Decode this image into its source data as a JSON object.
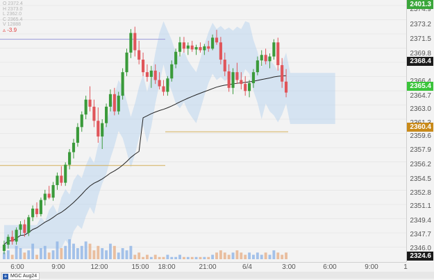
{
  "ohlc_box": {
    "lines": [
      "O 2372.4",
      "H 2373.0",
      "L 2362.0",
      "C 2365.4",
      "V 12888"
    ],
    "change": "-3.9",
    "change_icon": "triangle-delta-icon"
  },
  "price_axis": {
    "labels": [
      "2374.9",
      "2373.2",
      "2371.5",
      "2369.8",
      "2366.4",
      "2364.7",
      "2363.0",
      "2361.3",
      "2359.6",
      "2357.9",
      "2356.2",
      "2354.5",
      "2352.8",
      "2351.1",
      "2349.4",
      "2347.7",
      "2346.0"
    ],
    "badges": {
      "top": {
        "value": "2401.3",
        "color": "#3aa63a"
      },
      "last": {
        "value": "2368.4",
        "color": "#1b1b1b"
      },
      "current": {
        "value": "2365.4",
        "color": "#3bc43b"
      },
      "level": {
        "value": "2360.4",
        "color": "#c98a1a"
      },
      "bottom": {
        "value": "2324.6",
        "color": "#1b1b1b"
      }
    }
  },
  "time_axis": {
    "labels": [
      "6:00",
      "9:00",
      "12:00",
      "15:00",
      "18:00",
      "21:00",
      "6/4",
      "3:00",
      "6:00",
      "9:00",
      "1"
    ]
  },
  "symbol_tab": {
    "label": "MGC Aug24",
    "icon": "plus-icon"
  },
  "colors": {
    "bull": "#3a9a3a",
    "bear": "#e0555a",
    "cloud": "#bcd6ee",
    "cloud_red": "#f3c8cc",
    "vwap": "#222222",
    "level_line": "#d4b05a",
    "purple_line": "#9a98d8",
    "volume": "#8fb4e6",
    "volume_bear": "#e6b08a"
  },
  "chart_data": {
    "type": "candlestick",
    "ylim": [
      2344.5,
      2376.5
    ],
    "candles": [
      [
        2345.2,
        2346.5,
        2344.8,
        2346.0
      ],
      [
        2346.0,
        2347.3,
        2345.5,
        2347.0
      ],
      [
        2347.0,
        2347.8,
        2346.0,
        2346.4
      ],
      [
        2346.4,
        2348.2,
        2346.0,
        2347.9
      ],
      [
        2347.9,
        2349.0,
        2347.2,
        2348.6
      ],
      [
        2348.6,
        2349.2,
        2347.0,
        2347.5
      ],
      [
        2347.5,
        2349.8,
        2347.1,
        2349.5
      ],
      [
        2349.5,
        2351.0,
        2349.0,
        2350.6
      ],
      [
        2350.6,
        2351.4,
        2349.5,
        2349.9
      ],
      [
        2349.9,
        2352.0,
        2349.6,
        2351.7
      ],
      [
        2351.7,
        2353.0,
        2351.0,
        2352.5
      ],
      [
        2352.5,
        2353.5,
        2351.8,
        2352.0
      ],
      [
        2352.0,
        2354.0,
        2351.6,
        2353.6
      ],
      [
        2353.6,
        2355.2,
        2353.0,
        2354.8
      ],
      [
        2354.8,
        2356.0,
        2353.5,
        2353.9
      ],
      [
        2353.9,
        2356.5,
        2353.5,
        2356.2
      ],
      [
        2356.2,
        2358.2,
        2355.6,
        2357.8
      ],
      [
        2357.8,
        2359.5,
        2357.0,
        2359.0
      ],
      [
        2359.0,
        2361.5,
        2358.5,
        2361.0
      ],
      [
        2361.0,
        2363.0,
        2360.4,
        2362.6
      ],
      [
        2362.6,
        2365.0,
        2362.0,
        2364.5
      ],
      [
        2364.5,
        2366.2,
        2363.0,
        2363.6
      ],
      [
        2363.6,
        2364.5,
        2361.0,
        2361.8
      ],
      [
        2361.8,
        2363.5,
        2359.0,
        2359.8
      ],
      [
        2359.8,
        2362.0,
        2358.2,
        2361.5
      ],
      [
        2361.5,
        2364.0,
        2361.0,
        2363.6
      ],
      [
        2363.6,
        2365.8,
        2363.0,
        2365.2
      ],
      [
        2365.2,
        2366.0,
        2362.5,
        2363.0
      ],
      [
        2363.0,
        2365.5,
        2362.6,
        2365.0
      ],
      [
        2365.0,
        2368.5,
        2364.5,
        2368.0
      ],
      [
        2368.0,
        2371.0,
        2367.5,
        2370.5
      ],
      [
        2370.5,
        2373.5,
        2369.8,
        2373.0
      ],
      [
        2373.0,
        2373.8,
        2370.0,
        2370.8
      ],
      [
        2370.8,
        2372.0,
        2369.0,
        2369.6
      ],
      [
        2369.6,
        2370.5,
        2367.5,
        2368.0
      ],
      [
        2368.0,
        2369.0,
        2366.8,
        2367.4
      ],
      [
        2367.4,
        2368.8,
        2366.0,
        2368.2
      ],
      [
        2368.2,
        2369.0,
        2366.5,
        2367.0
      ],
      [
        2367.0,
        2368.0,
        2365.8,
        2366.2
      ],
      [
        2366.2,
        2367.0,
        2365.0,
        2365.5
      ],
      [
        2365.5,
        2367.5,
        2365.0,
        2367.2
      ],
      [
        2367.2,
        2369.5,
        2366.8,
        2369.0
      ],
      [
        2369.0,
        2371.0,
        2368.5,
        2370.6
      ],
      [
        2370.6,
        2372.5,
        2370.0,
        2371.8
      ],
      [
        2371.8,
        2372.5,
        2370.5,
        2371.0
      ],
      [
        2371.0,
        2371.8,
        2370.2,
        2371.4
      ],
      [
        2371.4,
        2372.0,
        2370.6,
        2370.9
      ],
      [
        2370.9,
        2371.5,
        2370.2,
        2371.2
      ],
      [
        2371.2,
        2371.8,
        2370.5,
        2370.8
      ],
      [
        2370.8,
        2371.6,
        2370.2,
        2371.3
      ],
      [
        2371.3,
        2372.0,
        2370.6,
        2371.0
      ],
      [
        2371.0,
        2372.8,
        2370.8,
        2372.4
      ],
      [
        2372.4,
        2373.4,
        2371.5,
        2371.8
      ],
      [
        2371.8,
        2372.5,
        2369.0,
        2369.6
      ],
      [
        2369.6,
        2370.5,
        2367.5,
        2368.1
      ],
      [
        2368.1,
        2369.0,
        2365.5,
        2366.0
      ],
      [
        2366.0,
        2368.5,
        2365.2,
        2368.0
      ],
      [
        2368.0,
        2369.2,
        2366.5,
        2367.0
      ],
      [
        2367.0,
        2368.0,
        2365.8,
        2366.5
      ],
      [
        2366.5,
        2367.5,
        2365.0,
        2365.6
      ],
      [
        2365.6,
        2367.0,
        2364.8,
        2366.6
      ],
      [
        2366.6,
        2368.4,
        2366.0,
        2368.0
      ],
      [
        2368.0,
        2370.0,
        2367.6,
        2369.5
      ],
      [
        2369.5,
        2370.8,
        2368.8,
        2370.2
      ],
      [
        2370.2,
        2371.0,
        2369.0,
        2369.4
      ],
      [
        2369.4,
        2370.4,
        2368.5,
        2370.0
      ],
      [
        2370.0,
        2372.2,
        2369.6,
        2371.8
      ],
      [
        2371.8,
        2372.4,
        2368.2,
        2368.9
      ],
      [
        2368.9,
        2369.8,
        2366.0,
        2366.8
      ],
      [
        2366.8,
        2368.4,
        2364.8,
        2365.4
      ]
    ],
    "volume": [
      3,
      4,
      2,
      6,
      5,
      3,
      4,
      7,
      2,
      5,
      6,
      3,
      4,
      8,
      5,
      6,
      9,
      7,
      5,
      6,
      8,
      7,
      4,
      6,
      5,
      4,
      7,
      6,
      3,
      5,
      4,
      6,
      2,
      3,
      1,
      2,
      1,
      2,
      1,
      1,
      2,
      1,
      1,
      2,
      1,
      1,
      1,
      1,
      1,
      1,
      1,
      2,
      3,
      4,
      3,
      2,
      3,
      4,
      3,
      2,
      3,
      2,
      3,
      2,
      3,
      2,
      4,
      3,
      2,
      3
    ]
  }
}
